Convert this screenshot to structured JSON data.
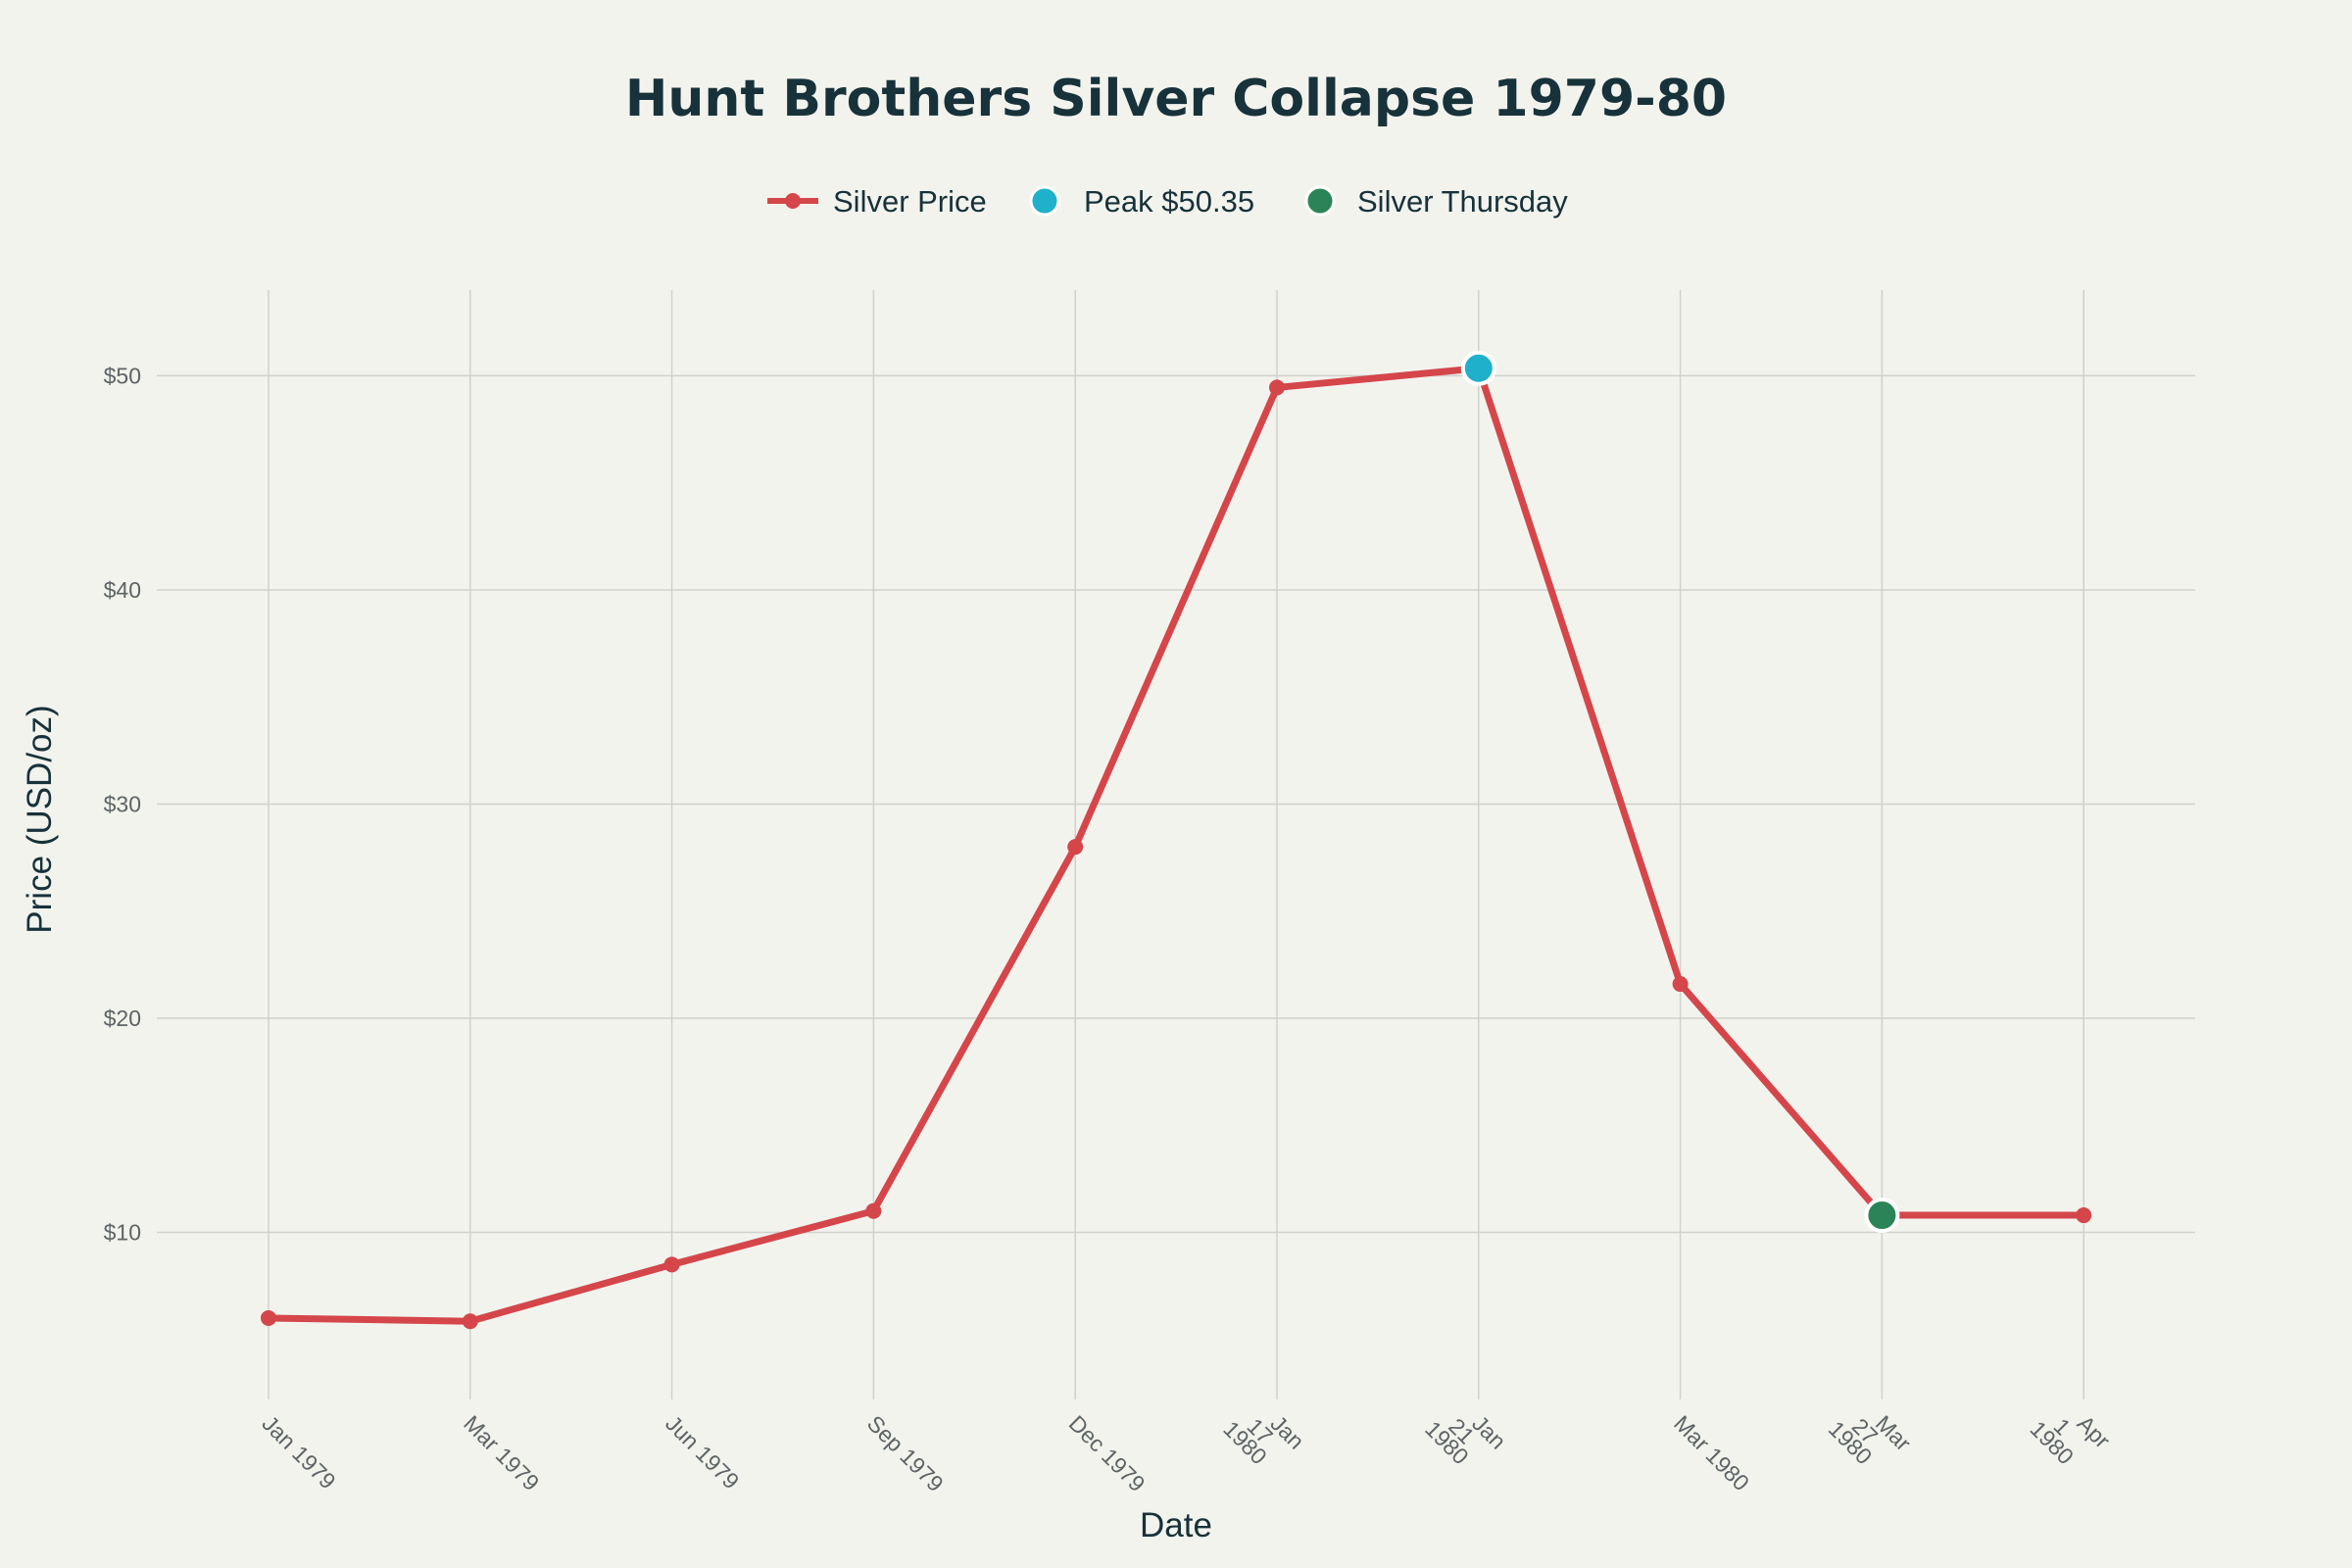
{
  "chart_data": {
    "type": "line",
    "title": "Hunt Brothers Silver Collapse 1979-80",
    "xlabel": "Date",
    "ylabel": "Price (USD/oz)",
    "categories": [
      [
        "Jan 1979"
      ],
      [
        "Mar 1979"
      ],
      [
        "Jun 1979"
      ],
      [
        "Sep 1979"
      ],
      [
        "Dec 1979"
      ],
      [
        "Jan",
        "17",
        "1980"
      ],
      [
        "Jan",
        "21",
        "1980"
      ],
      [
        "Mar 1980"
      ],
      [
        "Mar",
        "27",
        "1980"
      ],
      [
        "Apr",
        "1",
        "1980"
      ]
    ],
    "series": [
      {
        "name": "Silver Price",
        "values": [
          6.0,
          5.85,
          8.5,
          11.0,
          28.0,
          49.45,
          50.35,
          21.6,
          10.8,
          10.8
        ],
        "color": "#d5464a"
      }
    ],
    "highlights": [
      {
        "name": "Peak $50.35",
        "index": 6,
        "value": 50.35,
        "color": "#1fb0cc"
      },
      {
        "name": "Silver Thursday",
        "index": 8,
        "value": 10.8,
        "color": "#2a8457"
      }
    ],
    "y_ticks": [
      10,
      20,
      30,
      40,
      50
    ],
    "y_tick_labels": [
      "$10",
      "$20",
      "$30",
      "$40",
      "$50"
    ],
    "ylim": [
      2.2,
      54
    ],
    "grid": true,
    "legend_position": "top-center"
  }
}
